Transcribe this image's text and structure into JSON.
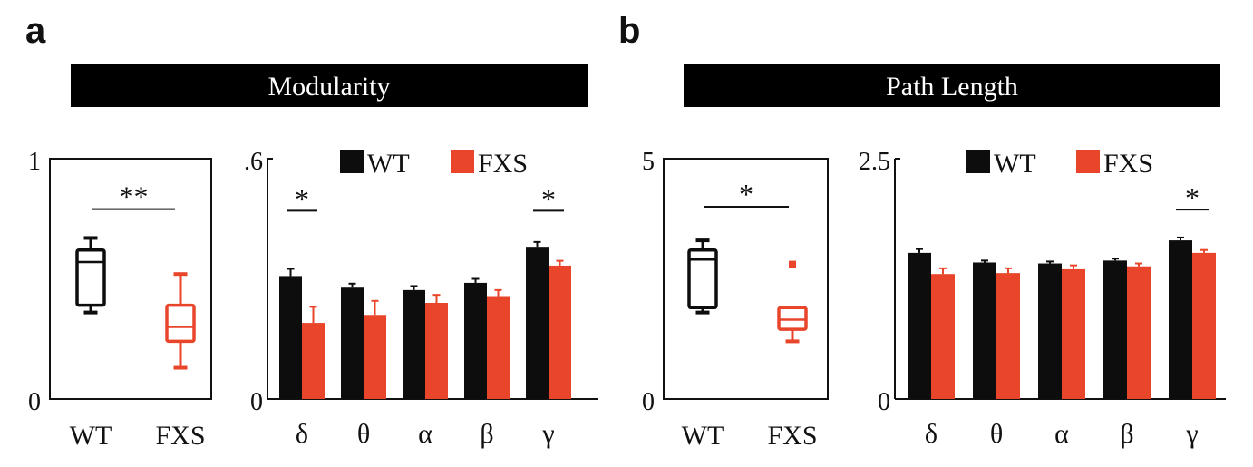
{
  "colors": {
    "wt": "#0d0d0d",
    "fxs": "#e8452b",
    "banner": "#000000"
  },
  "panels": [
    {
      "letter": "a",
      "banner": "Modularity"
    },
    {
      "letter": "b",
      "banner": "Path Length"
    }
  ],
  "chart_data": [
    {
      "type": "box",
      "panel": "a",
      "categories": [
        "WT",
        "FXS"
      ],
      "ylim": [
        0,
        1
      ],
      "yticks": [
        "0",
        "1"
      ],
      "boxes": [
        {
          "name": "WT",
          "whisker_low": 0.36,
          "q1": 0.39,
          "median": 0.57,
          "q3": 0.62,
          "whisker_high": 0.67,
          "outliers": []
        },
        {
          "name": "FXS",
          "whisker_low": 0.13,
          "q1": 0.24,
          "median": 0.3,
          "q3": 0.39,
          "whisker_high": 0.52,
          "outliers": []
        }
      ],
      "significance": [
        {
          "from": "WT",
          "to": "FXS",
          "label": "**",
          "y": 0.79
        }
      ]
    },
    {
      "type": "bar",
      "panel": "a",
      "categories": [
        "δ",
        "θ",
        "α",
        "β",
        "γ"
      ],
      "ylim": [
        0,
        0.6
      ],
      "yticks": [
        "0",
        ".6"
      ],
      "series": [
        {
          "name": "WT",
          "values": [
            0.307,
            0.278,
            0.272,
            0.29,
            0.38
          ],
          "errors": [
            0.018,
            0.01,
            0.01,
            0.01,
            0.012
          ]
        },
        {
          "name": "FXS",
          "values": [
            0.19,
            0.21,
            0.24,
            0.257,
            0.333
          ],
          "errors": [
            0.04,
            0.035,
            0.02,
            0.015,
            0.012
          ]
        }
      ],
      "legend": "top",
      "significance": [
        {
          "category": "δ",
          "label": "*",
          "y": 0.47
        },
        {
          "category": "γ",
          "label": "*",
          "y": 0.47
        }
      ]
    },
    {
      "type": "box",
      "panel": "b",
      "categories": [
        "WT",
        "FXS"
      ],
      "ylim": [
        0,
        5
      ],
      "yticks": [
        "0",
        "5"
      ],
      "boxes": [
        {
          "name": "WT",
          "whisker_low": 1.8,
          "q1": 1.9,
          "median": 2.9,
          "q3": 3.1,
          "whisker_high": 3.3,
          "outliers": []
        },
        {
          "name": "FXS",
          "whisker_low": 1.2,
          "q1": 1.45,
          "median": 1.65,
          "q3": 1.9,
          "whisker_high": 1.9,
          "outliers": [
            2.8
          ]
        }
      ],
      "significance": [
        {
          "from": "WT",
          "to": "FXS",
          "label": "*",
          "y": 4.0
        }
      ]
    },
    {
      "type": "bar",
      "panel": "b",
      "categories": [
        "δ",
        "θ",
        "α",
        "β",
        "γ"
      ],
      "ylim": [
        0,
        2.5
      ],
      "yticks": [
        "0",
        "2.5"
      ],
      "series": [
        {
          "name": "WT",
          "values": [
            1.52,
            1.42,
            1.41,
            1.44,
            1.65
          ],
          "errors": [
            0.04,
            0.02,
            0.02,
            0.02,
            0.03
          ]
        },
        {
          "name": "FXS",
          "values": [
            1.3,
            1.31,
            1.35,
            1.38,
            1.52
          ],
          "errors": [
            0.06,
            0.05,
            0.04,
            0.03,
            0.03
          ]
        }
      ],
      "legend": "top",
      "significance": [
        {
          "category": "γ",
          "label": "*",
          "y": 1.97
        }
      ]
    }
  ]
}
